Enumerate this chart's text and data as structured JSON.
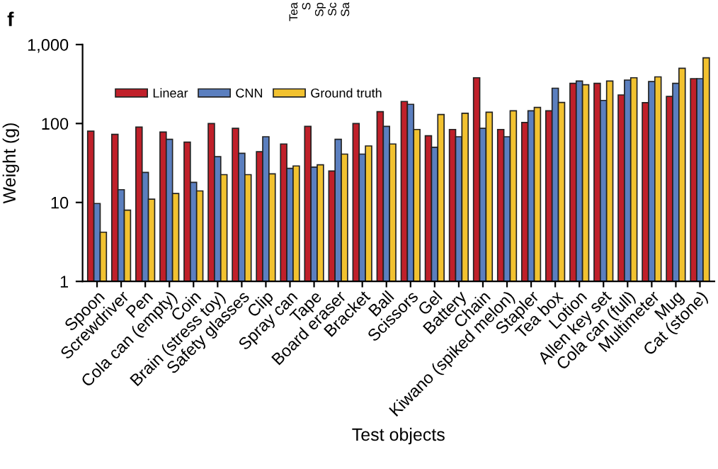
{
  "chart_data": {
    "type": "bar",
    "xlabel": "Test objects",
    "ylabel": "Weight (g)",
    "categories": [
      "Spoon",
      "Screwdriver",
      "Pen",
      "Cola can (empty)",
      "Coin",
      "Brain (stress toy)",
      "Safety glasses",
      "Clip",
      "Spray can",
      "Tape",
      "Board eraser",
      "Bracket",
      "Ball",
      "Scissors",
      "Gel",
      "Battery",
      "Chain",
      "Kiwano (spiked melon)",
      "Stapler",
      "Tea box",
      "Lotion",
      "Allen key set",
      "Cola can (full)",
      "Multimeter",
      "Mug",
      "Cat (stone)"
    ],
    "series": [
      {
        "name": "Linear",
        "color": "#c0202a",
        "values": [
          80,
          73,
          90,
          78,
          58,
          100,
          87,
          44,
          55,
          92,
          25,
          100,
          141,
          190,
          70,
          84,
          380,
          84,
          103,
          145,
          323,
          323,
          230,
          184,
          220,
          370
        ]
      },
      {
        "name": "CNN",
        "color": "#5b7fbf",
        "values": [
          9.7,
          14.5,
          24,
          63,
          18,
          38,
          42,
          68,
          27,
          28,
          63,
          41,
          92,
          175,
          50,
          68,
          87,
          68,
          145,
          280,
          345,
          196,
          355,
          340,
          323,
          370
        ]
      },
      {
        "name": "Ground truth",
        "color": "#f2c230",
        "values": [
          4.2,
          8,
          11,
          13,
          14,
          22.5,
          22.5,
          23,
          29,
          30,
          41,
          52,
          55,
          84,
          130,
          135,
          139,
          145,
          160,
          185,
          310,
          345,
          380,
          390,
          500,
          680
        ]
      }
    ],
    "log": "y",
    "ylim": [
      1,
      1000
    ],
    "yticks": [
      1,
      10,
      100,
      {
        "value": 1000,
        "label": "1,000"
      }
    ],
    "grid": false,
    "legend": "top left",
    "annotations": [
      "f",
      "Tea",
      "S",
      "Sp",
      "Sc",
      "Sa"
    ]
  }
}
